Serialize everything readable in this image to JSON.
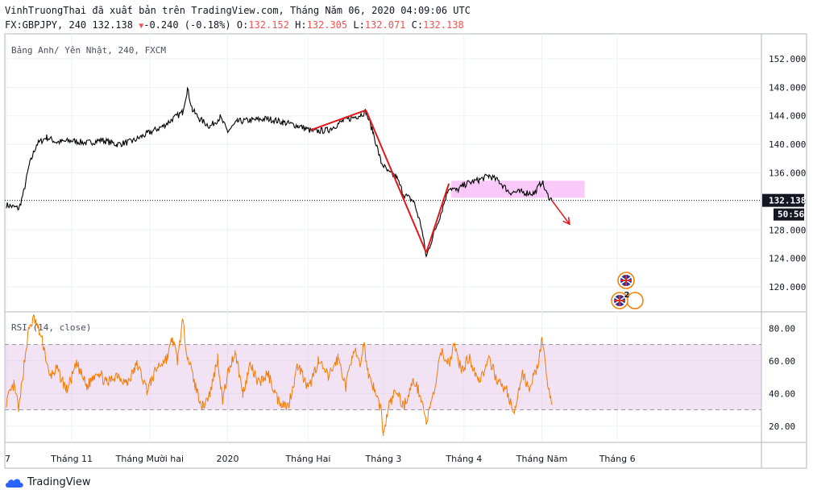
{
  "header": {
    "line1": "VinhTruongThai đã xuất bản trên TradingView.com, Tháng Năm 06, 2020 04:09:06 UTC",
    "symbol": "FX:GBPJPY, 240",
    "last": "132.138",
    "change": "-0.240 (-0.18%)",
    "o_label": "O:",
    "o_val": "132.152",
    "h_label": "H:",
    "h_val": "132.305",
    "l_label": "L:",
    "l_val": "132.071",
    "c_label": "C:",
    "c_val": "132.138"
  },
  "footer": {
    "brand": "TradingView"
  },
  "chart_data": [
    {
      "type": "line",
      "title": "Bảng Anh/ Yên Nhật, 240, FXCM",
      "ylim": [
        116.5,
        155.5
      ],
      "yticks": [
        "152.000",
        "148.000",
        "144.000",
        "140.000",
        "136.000",
        "132.000",
        "128.000",
        "124.000",
        "120.000"
      ],
      "ytick_values": [
        152,
        148,
        144,
        140,
        136,
        132,
        128,
        124,
        120
      ],
      "last_price": 132.138,
      "last_price_label": "132.138",
      "countdown_label": "50:56",
      "x_range": [
        0,
        300
      ],
      "x_labels": [
        {
          "label": "7",
          "x": 0
        },
        {
          "label": "Tháng 11",
          "x": 26
        },
        {
          "label": "Tháng Mười hai",
          "x": 57
        },
        {
          "label": "2020",
          "x": 88
        },
        {
          "label": "Tháng Hai",
          "x": 120
        },
        {
          "label": "Tháng 3",
          "x": 150
        },
        {
          "label": "Tháng 4",
          "x": 182
        },
        {
          "label": "Tháng Năm",
          "x": 213
        },
        {
          "label": "Tháng 6",
          "x": 243
        }
      ],
      "price_anchors": [
        [
          0,
          131.5
        ],
        [
          5,
          131.0
        ],
        [
          7,
          133.5
        ],
        [
          9,
          137.0
        ],
        [
          12,
          140.0
        ],
        [
          16,
          141.0
        ],
        [
          20,
          140.3
        ],
        [
          26,
          140.5
        ],
        [
          32,
          140.2
        ],
        [
          38,
          140.6
        ],
        [
          44,
          140.0
        ],
        [
          50,
          140.4
        ],
        [
          56,
          141.5
        ],
        [
          62,
          142.5
        ],
        [
          66,
          143.5
        ],
        [
          70,
          144.5
        ],
        [
          72,
          147.8
        ],
        [
          74,
          144.8
        ],
        [
          77,
          143.5
        ],
        [
          81,
          142.5
        ],
        [
          85,
          143.8
        ],
        [
          88,
          141.8
        ],
        [
          92,
          143.2
        ],
        [
          98,
          143.4
        ],
        [
          104,
          143.6
        ],
        [
          110,
          143.1
        ],
        [
          116,
          142.6
        ],
        [
          122,
          141.8
        ],
        [
          128,
          142.0
        ],
        [
          134,
          143.3
        ],
        [
          140,
          144.0
        ],
        [
          143,
          144.6
        ],
        [
          146,
          141.5
        ],
        [
          149,
          137.5
        ],
        [
          152,
          136.0
        ],
        [
          155,
          135.5
        ],
        [
          158,
          133.0
        ],
        [
          162,
          132.0
        ],
        [
          165,
          128.5
        ],
        [
          167,
          124.2
        ],
        [
          170,
          127.5
        ],
        [
          173,
          130.5
        ],
        [
          176,
          134.0
        ],
        [
          179,
          133.5
        ],
        [
          183,
          134.5
        ],
        [
          188,
          135.0
        ],
        [
          192,
          135.6
        ],
        [
          196,
          134.8
        ],
        [
          200,
          133.3
        ],
        [
          205,
          133.3
        ],
        [
          210,
          133.1
        ],
        [
          213,
          134.8
        ],
        [
          215,
          133.0
        ],
        [
          217,
          132.1
        ]
      ],
      "trend_lines": [
        [
          [
            121,
            142.0
          ],
          [
            143,
            144.8
          ]
        ],
        [
          [
            143,
            144.8
          ],
          [
            167,
            124.8
          ]
        ],
        [
          [
            167,
            124.8
          ],
          [
            176,
            134.5
          ]
        ]
      ],
      "projection_arrow": [
        [
          217,
          132.1
        ],
        [
          224,
          128.8
        ]
      ],
      "range_box": {
        "x_start": 177,
        "x_end": 230,
        "y_low": 132.5,
        "y_high": 134.9
      },
      "events_label": "2"
    },
    {
      "type": "line",
      "title": "RSI (14, close)",
      "ylim": [
        10,
        90
      ],
      "yticks": [
        "80.00",
        "60.00",
        "40.00",
        "20.00"
      ],
      "ytick_values": [
        80,
        60,
        40,
        20
      ],
      "bands": [
        30,
        70
      ],
      "rsi_anchors": [
        [
          0,
          35
        ],
        [
          3,
          45
        ],
        [
          5,
          30
        ],
        [
          7,
          58
        ],
        [
          9,
          80
        ],
        [
          11,
          86
        ],
        [
          13,
          78
        ],
        [
          15,
          68
        ],
        [
          17,
          50
        ],
        [
          20,
          55
        ],
        [
          24,
          42
        ],
        [
          28,
          58
        ],
        [
          32,
          44
        ],
        [
          36,
          54
        ],
        [
          40,
          46
        ],
        [
          44,
          52
        ],
        [
          48,
          46
        ],
        [
          52,
          58
        ],
        [
          56,
          42
        ],
        [
          60,
          56
        ],
        [
          64,
          62
        ],
        [
          66,
          74
        ],
        [
          68,
          60
        ],
        [
          70,
          84
        ],
        [
          72,
          64
        ],
        [
          75,
          45
        ],
        [
          78,
          32
        ],
        [
          81,
          40
        ],
        [
          84,
          62
        ],
        [
          86,
          35
        ],
        [
          88,
          52
        ],
        [
          91,
          66
        ],
        [
          94,
          40
        ],
        [
          97,
          58
        ],
        [
          100,
          46
        ],
        [
          104,
          52
        ],
        [
          108,
          36
        ],
        [
          112,
          32
        ],
        [
          116,
          58
        ],
        [
          120,
          42
        ],
        [
          124,
          60
        ],
        [
          128,
          50
        ],
        [
          132,
          62
        ],
        [
          135,
          44
        ],
        [
          138,
          68
        ],
        [
          141,
          55
        ],
        [
          142,
          72
        ],
        [
          144,
          52
        ],
        [
          146,
          44
        ],
        [
          149,
          30
        ],
        [
          150,
          14
        ],
        [
          152,
          32
        ],
        [
          155,
          42
        ],
        [
          158,
          32
        ],
        [
          162,
          48
        ],
        [
          165,
          38
        ],
        [
          167,
          22
        ],
        [
          170,
          40
        ],
        [
          173,
          66
        ],
        [
          176,
          58
        ],
        [
          178,
          70
        ],
        [
          181,
          54
        ],
        [
          184,
          62
        ],
        [
          188,
          48
        ],
        [
          192,
          60
        ],
        [
          196,
          46
        ],
        [
          199,
          42
        ],
        [
          202,
          26
        ],
        [
          205,
          52
        ],
        [
          208,
          44
        ],
        [
          211,
          55
        ],
        [
          213,
          72
        ],
        [
          215,
          50
        ],
        [
          217,
          33
        ]
      ]
    }
  ]
}
